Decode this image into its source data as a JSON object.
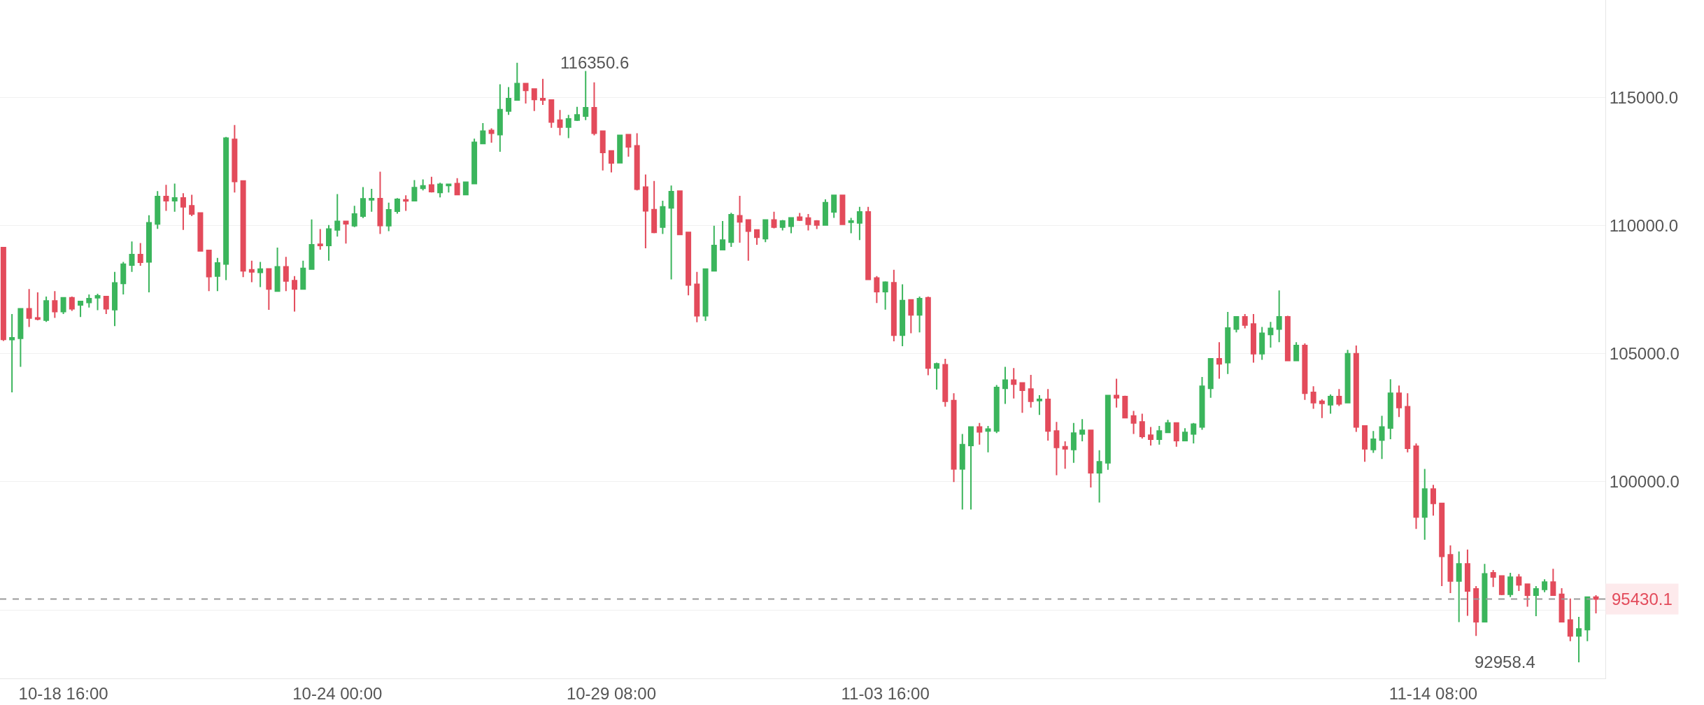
{
  "chart_data": {
    "type": "candlestick",
    "categories": [
      null,
      null,
      null,
      null,
      null,
      null,
      null,
      "10-18 16:00",
      null,
      null,
      null,
      null,
      null,
      null,
      null,
      null,
      null,
      null,
      null,
      null,
      null,
      null,
      null,
      null,
      null,
      null,
      null,
      null,
      null,
      null,
      null,
      null,
      null,
      null,
      null,
      null,
      null,
      null,
      null,
      "10-24 00:00",
      null,
      null,
      null,
      null,
      null,
      null,
      null,
      null,
      null,
      null,
      null,
      null,
      null,
      null,
      null,
      null,
      null,
      null,
      null,
      null,
      null,
      null,
      null,
      null,
      null,
      null,
      null,
      null,
      null,
      null,
      null,
      "10-29 08:00",
      null,
      null,
      null,
      null,
      null,
      null,
      null,
      null,
      null,
      null,
      null,
      null,
      null,
      null,
      null,
      null,
      null,
      null,
      null,
      null,
      null,
      null,
      null,
      null,
      null,
      null,
      null,
      null,
      null,
      null,
      null,
      "11-03 16:00",
      null,
      null,
      null,
      null,
      null,
      null,
      null,
      null,
      null,
      null,
      null,
      null,
      null,
      null,
      null,
      null,
      null,
      null,
      null,
      null,
      null,
      null,
      null,
      null,
      null,
      null,
      null,
      null,
      null,
      null,
      null,
      null,
      null,
      null,
      null,
      null,
      null,
      null,
      null,
      null,
      null,
      null,
      null,
      null,
      null,
      null,
      null,
      null,
      null,
      null,
      null,
      null,
      null,
      null,
      null,
      null,
      null,
      null,
      null,
      null,
      null,
      null,
      null,
      "11-14 08:00",
      null,
      null,
      null,
      null,
      null,
      null,
      null,
      null,
      null,
      null,
      null,
      null,
      null,
      null,
      null,
      null,
      null,
      null,
      null
    ],
    "ohlc": [
      [
        109140,
        109140,
        105500,
        105560
      ],
      [
        105550,
        106550,
        103490,
        105620
      ],
      [
        105600,
        106750,
        104490,
        106750
      ],
      [
        106750,
        107520,
        106040,
        106390
      ],
      [
        106400,
        107390,
        106300,
        106350
      ],
      [
        106310,
        107230,
        106240,
        107060
      ],
      [
        107060,
        107440,
        106400,
        106640
      ],
      [
        106640,
        107200,
        106550,
        107180
      ],
      [
        107180,
        107230,
        106670,
        106750
      ],
      [
        106900,
        107060,
        106430,
        107040
      ],
      [
        107000,
        107310,
        106800,
        107150
      ],
      [
        107180,
        107340,
        106700,
        107260
      ],
      [
        107230,
        107250,
        106550,
        106750
      ],
      [
        106720,
        108190,
        106080,
        107760
      ],
      [
        107740,
        108580,
        107310,
        108490
      ],
      [
        108460,
        109380,
        108190,
        108870
      ],
      [
        108870,
        109320,
        108430,
        108570
      ],
      [
        108580,
        110400,
        107390,
        110110
      ],
      [
        110060,
        111340,
        109870,
        111130
      ],
      [
        111130,
        111590,
        110570,
        110970
      ],
      [
        110970,
        111640,
        110540,
        111080
      ],
      [
        111080,
        111260,
        109830,
        110730
      ],
      [
        110770,
        111200,
        110370,
        110450
      ],
      [
        110490,
        110490,
        109010,
        109010
      ],
      [
        109030,
        109030,
        107440,
        108010
      ],
      [
        108030,
        108740,
        107440,
        108540
      ],
      [
        108500,
        113460,
        107870,
        113410
      ],
      [
        113360,
        113920,
        111290,
        111720
      ],
      [
        111740,
        111740,
        107990,
        108230
      ],
      [
        108270,
        108630,
        107790,
        108190
      ],
      [
        108170,
        108580,
        107600,
        108300
      ],
      [
        108310,
        108310,
        106710,
        107520
      ],
      [
        107440,
        109140,
        107440,
        108390
      ],
      [
        108390,
        108780,
        107440,
        107840
      ],
      [
        107850,
        108030,
        106640,
        107520
      ],
      [
        107520,
        108630,
        107520,
        108330
      ],
      [
        108300,
        110240,
        108300,
        109250
      ],
      [
        109270,
        109860,
        109060,
        109220
      ],
      [
        109220,
        110020,
        108630,
        109860
      ],
      [
        109830,
        111230,
        109570,
        110160
      ],
      [
        110160,
        110160,
        109300,
        110070
      ],
      [
        109990,
        110770,
        109940,
        110450
      ],
      [
        110370,
        111500,
        110290,
        111040
      ],
      [
        111000,
        111430,
        110540,
        111050
      ],
      [
        111050,
        112100,
        109670,
        110000
      ],
      [
        109990,
        110890,
        109780,
        110610
      ],
      [
        110560,
        111070,
        110460,
        111020
      ],
      [
        111000,
        111180,
        110570,
        110960
      ],
      [
        110970,
        111770,
        110970,
        111480
      ],
      [
        111450,
        111800,
        111370,
        111550
      ],
      [
        111580,
        111900,
        111290,
        111320
      ],
      [
        111290,
        111670,
        111100,
        111610
      ],
      [
        111560,
        111640,
        111290,
        111610
      ],
      [
        111640,
        111850,
        111210,
        111210
      ],
      [
        111210,
        111690,
        111210,
        111690
      ],
      [
        111640,
        113390,
        111640,
        113250
      ],
      [
        113200,
        114000,
        113200,
        113680
      ],
      [
        113710,
        113790,
        113230,
        113600
      ],
      [
        113550,
        115510,
        112880,
        114520
      ],
      [
        114470,
        115400,
        114320,
        114950
      ],
      [
        114900,
        116350.6,
        114900,
        115540
      ],
      [
        115540,
        115540,
        114760,
        115270
      ],
      [
        115330,
        115330,
        114470,
        114920
      ],
      [
        114950,
        115720,
        114710,
        114900
      ],
      [
        114900,
        114900,
        113810,
        114040
      ],
      [
        114110,
        114510,
        113520,
        113840
      ],
      [
        113840,
        114320,
        113410,
        114160
      ],
      [
        114110,
        114630,
        114080,
        114320
      ],
      [
        114270,
        116030,
        114110,
        114600
      ],
      [
        114600,
        115590,
        113520,
        113600
      ],
      [
        113680,
        113680,
        112150,
        112850
      ],
      [
        112910,
        112910,
        112070,
        112440
      ],
      [
        112450,
        113520,
        112450,
        113520
      ],
      [
        113550,
        113550,
        112690,
        113070
      ],
      [
        113110,
        113600,
        111370,
        111420
      ],
      [
        111500,
        111990,
        109110,
        110570
      ],
      [
        110620,
        111740,
        109700,
        109730
      ],
      [
        109940,
        110970,
        109670,
        110730
      ],
      [
        110690,
        111560,
        107900,
        111320
      ],
      [
        111340,
        111340,
        109650,
        109650
      ],
      [
        109730,
        109730,
        107280,
        107680
      ],
      [
        107710,
        108190,
        106230,
        106480
      ],
      [
        106480,
        108300,
        106280,
        108300
      ],
      [
        108230,
        109990,
        108230,
        109220
      ],
      [
        109060,
        110180,
        109060,
        109430
      ],
      [
        109350,
        110500,
        109170,
        110420
      ],
      [
        110380,
        111160,
        109330,
        110140
      ],
      [
        110220,
        110220,
        108630,
        109780
      ],
      [
        109830,
        109830,
        109250,
        109540
      ],
      [
        109490,
        110220,
        109350,
        110220
      ],
      [
        110220,
        110540,
        109890,
        109940
      ],
      [
        109940,
        110220,
        109810,
        110180
      ],
      [
        109970,
        110300,
        109700,
        110300
      ],
      [
        110330,
        110490,
        110180,
        110210
      ],
      [
        110290,
        110450,
        109810,
        110050
      ],
      [
        110180,
        110210,
        109860,
        110020
      ],
      [
        110020,
        111020,
        110020,
        110890
      ],
      [
        110530,
        111180,
        110300,
        111180
      ],
      [
        111180,
        111180,
        110050,
        110050
      ],
      [
        110130,
        110300,
        109700,
        110180
      ],
      [
        110100,
        110730,
        109430,
        110530
      ],
      [
        110530,
        110730,
        107870,
        107900
      ],
      [
        107950,
        108030,
        106980,
        107420
      ],
      [
        107420,
        107820,
        106720,
        107790
      ],
      [
        107770,
        108270,
        105480,
        105720
      ],
      [
        105720,
        107710,
        105290,
        107070
      ],
      [
        107100,
        107100,
        105800,
        106510
      ],
      [
        106510,
        107230,
        105830,
        107150
      ],
      [
        107180,
        107230,
        104160,
        104440
      ],
      [
        104440,
        104650,
        103600,
        104600
      ],
      [
        104570,
        104800,
        102930,
        103140
      ],
      [
        103170,
        103460,
        99990,
        100500
      ],
      [
        100500,
        101870,
        98920,
        101450
      ],
      [
        101420,
        102140,
        98920,
        102140
      ],
      [
        102140,
        102300,
        101450,
        101950
      ],
      [
        101980,
        102180,
        101150,
        102060
      ],
      [
        101980,
        103780,
        101900,
        103680
      ],
      [
        103650,
        104490,
        103040,
        103970
      ],
      [
        103970,
        104440,
        103250,
        103810
      ],
      [
        103860,
        103860,
        102690,
        103570
      ],
      [
        103620,
        104170,
        102900,
        103140
      ],
      [
        103170,
        103380,
        102610,
        103220
      ],
      [
        103220,
        103620,
        101610,
        101980
      ],
      [
        101980,
        102340,
        100260,
        101340
      ],
      [
        101370,
        101580,
        100510,
        101290
      ],
      [
        101260,
        102300,
        100740,
        101900
      ],
      [
        101870,
        102450,
        101580,
        102010
      ],
      [
        102010,
        102010,
        99780,
        100350
      ],
      [
        100350,
        101230,
        99190,
        100780
      ],
      [
        100740,
        103370,
        100470,
        103370
      ],
      [
        103370,
        104020,
        102900,
        103280
      ],
      [
        103330,
        103360,
        102500,
        102500
      ],
      [
        102570,
        102770,
        101870,
        102300
      ],
      [
        102340,
        102660,
        101690,
        101770
      ],
      [
        101820,
        102140,
        101420,
        101660
      ],
      [
        101660,
        102180,
        101450,
        101980
      ],
      [
        101930,
        102420,
        101900,
        102300
      ],
      [
        102300,
        102300,
        101370,
        101610
      ],
      [
        101610,
        102090,
        101610,
        101930
      ],
      [
        101870,
        102300,
        101500,
        102250
      ],
      [
        102140,
        104090,
        102030,
        103730
      ],
      [
        103650,
        104800,
        103280,
        104800
      ],
      [
        104800,
        105450,
        104020,
        104600
      ],
      [
        104650,
        106630,
        104210,
        106000
      ],
      [
        105960,
        106440,
        105830,
        106440
      ],
      [
        106440,
        106550,
        105990,
        106120
      ],
      [
        106160,
        106550,
        104650,
        105000
      ],
      [
        105000,
        106040,
        104760,
        105800
      ],
      [
        105750,
        106240,
        105240,
        105990
      ],
      [
        105960,
        107470,
        105450,
        106440
      ],
      [
        106440,
        106480,
        104730,
        104730
      ],
      [
        104730,
        105450,
        104730,
        105320
      ],
      [
        105320,
        105400,
        103200,
        103460
      ],
      [
        103490,
        103730,
        102850,
        103090
      ],
      [
        103140,
        103220,
        102490,
        103060
      ],
      [
        103010,
        103410,
        102660,
        103330
      ],
      [
        103330,
        103620,
        102960,
        103040
      ],
      [
        103090,
        105150,
        103090,
        105000
      ],
      [
        105000,
        105320,
        101950,
        102140
      ],
      [
        102180,
        102180,
        100780,
        101290
      ],
      [
        101260,
        101980,
        101130,
        101660
      ],
      [
        101630,
        102580,
        100890,
        102140
      ],
      [
        102100,
        104000,
        101660,
        103460
      ],
      [
        103460,
        103760,
        102530,
        102900
      ],
      [
        102930,
        103460,
        101150,
        101310
      ],
      [
        101390,
        101500,
        98160,
        98630
      ],
      [
        98630,
        100500,
        97740,
        99720
      ],
      [
        99720,
        99880,
        98680,
        99160
      ],
      [
        99160,
        99160,
        95930,
        97090
      ],
      [
        97150,
        97520,
        95660,
        96130
      ],
      [
        96130,
        97280,
        94530,
        96800
      ],
      [
        96800,
        97360,
        94770,
        95740
      ],
      [
        95820,
        95930,
        93990,
        94540
      ],
      [
        94540,
        96800,
        94540,
        96410
      ],
      [
        96450,
        96560,
        95900,
        96290
      ],
      [
        96330,
        96330,
        95580,
        95610
      ],
      [
        95610,
        96450,
        95500,
        96280
      ],
      [
        96280,
        96400,
        95740,
        95980
      ],
      [
        96010,
        96010,
        95130,
        95580
      ],
      [
        95580,
        95930,
        94760,
        95820
      ],
      [
        95800,
        96200,
        95690,
        96090
      ],
      [
        96090,
        96610,
        95580,
        95580
      ],
      [
        95610,
        95850,
        94540,
        94540
      ],
      [
        94610,
        95450,
        93780,
        93990
      ],
      [
        93990,
        94730,
        92958.4,
        94260
      ],
      [
        94230,
        95500,
        93780,
        95500
      ],
      [
        95500,
        95580,
        94870,
        95430.1
      ]
    ],
    "ylim": [
      92330,
      118800
    ],
    "yticks": [
      {
        "value": 95000,
        "label": null
      },
      {
        "value": 100000,
        "label": "100000.0"
      },
      {
        "value": 105000,
        "label": "105000.0"
      },
      {
        "value": 110000,
        "label": "110000.0"
      },
      {
        "value": 115000,
        "label": "115000.0"
      }
    ],
    "grid": "y",
    "ref_lines": [
      {
        "axis": "y",
        "value": 95430.1,
        "label": "95430.1",
        "color": "#9a9a9a",
        "line_style": "dashed"
      }
    ],
    "annotations": [
      "116350.6",
      "92958.4"
    ]
  }
}
